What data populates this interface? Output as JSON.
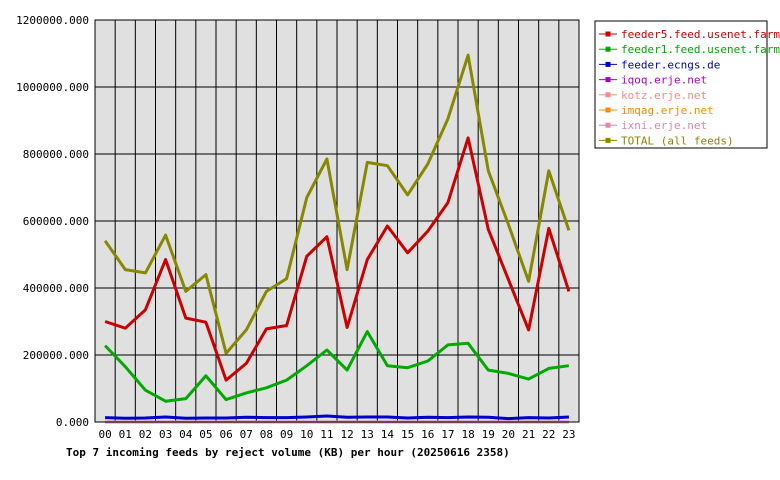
{
  "chart_data": {
    "type": "line",
    "title": "Top 7 incoming feeds by reject volume (KB) per hour (20250616 2358)",
    "xlabel": "",
    "ylabel": "",
    "categories": [
      "00",
      "01",
      "02",
      "03",
      "04",
      "05",
      "06",
      "07",
      "08",
      "09",
      "10",
      "11",
      "12",
      "13",
      "14",
      "15",
      "16",
      "17",
      "18",
      "19",
      "20",
      "21",
      "22",
      "23"
    ],
    "ylim": [
      0,
      1200000
    ],
    "yticks": [
      "0.000",
      "200000.000",
      "400000.000",
      "600000.000",
      "800000.000",
      "1000000.000",
      "1200000.000"
    ],
    "ytick_values": [
      0,
      200000,
      400000,
      600000,
      800000,
      1000000,
      1200000
    ],
    "grid": true,
    "legend_position": "right",
    "series": [
      {
        "name": "feeder5.feed.usenet.farm",
        "color": "#cc0000",
        "values": [
          300000,
          280000,
          335000,
          485000,
          310000,
          298000,
          125000,
          175000,
          278000,
          288000,
          495000,
          553000,
          282000,
          485000,
          585000,
          505000,
          570000,
          655000,
          848000,
          575000,
          425000,
          275000,
          578000,
          390000
        ]
      },
      {
        "name": "feeder1.feed.usenet.farm",
        "color": "#00aa00",
        "values": [
          228000,
          165000,
          95000,
          62000,
          70000,
          138000,
          67000,
          87000,
          102000,
          125000,
          168000,
          215000,
          155000,
          270000,
          168000,
          162000,
          182000,
          230000,
          235000,
          155000,
          145000,
          128000,
          160000,
          168000
        ]
      },
      {
        "name": "feeder.ecngs.de",
        "color": "#0000cc",
        "values": [
          13000,
          11000,
          12000,
          15000,
          11000,
          12000,
          12000,
          14000,
          13000,
          13000,
          15000,
          18000,
          14000,
          15000,
          15000,
          12000,
          14000,
          13000,
          15000,
          14000,
          10000,
          13000,
          12000,
          15000
        ]
      },
      {
        "name": "iqoq.erje.net",
        "color": "#aa00cc",
        "values": [
          0,
          0,
          0,
          0,
          0,
          0,
          0,
          0,
          0,
          0,
          0,
          0,
          0,
          0,
          0,
          0,
          0,
          0,
          0,
          0,
          0,
          0,
          0,
          0
        ]
      },
      {
        "name": "kotz.erje.net",
        "color": "#ff8888",
        "values": [
          0,
          0,
          0,
          0,
          0,
          0,
          0,
          0,
          0,
          0,
          0,
          0,
          0,
          0,
          0,
          0,
          0,
          0,
          0,
          0,
          0,
          0,
          0,
          0
        ]
      },
      {
        "name": "imqag.erje.net",
        "color": "#ff8800",
        "values": [
          0,
          0,
          0,
          0,
          0,
          0,
          0,
          0,
          0,
          0,
          0,
          0,
          0,
          0,
          0,
          0,
          0,
          0,
          0,
          0,
          0,
          0,
          0,
          0
        ]
      },
      {
        "name": "ixni.erje.net",
        "color": "#dd88aa",
        "values": [
          0,
          0,
          0,
          0,
          0,
          0,
          0,
          0,
          0,
          0,
          0,
          0,
          0,
          0,
          0,
          0,
          0,
          0,
          0,
          0,
          0,
          0,
          0,
          0
        ]
      },
      {
        "name": "TOTAL (all feeds)",
        "color": "#888800",
        "values": [
          541000,
          455000,
          445000,
          558000,
          390000,
          440000,
          205000,
          275000,
          390000,
          428000,
          670000,
          785000,
          455000,
          775000,
          765000,
          678000,
          770000,
          905000,
          1095000,
          750000,
          590000,
          420000,
          750000,
          572000
        ]
      }
    ]
  }
}
